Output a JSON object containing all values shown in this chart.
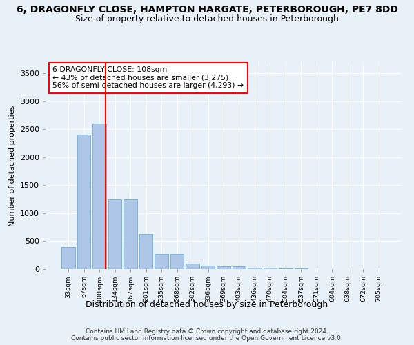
{
  "title_line1": "6, DRAGONFLY CLOSE, HAMPTON HARGATE, PETERBOROUGH, PE7 8DD",
  "title_line2": "Size of property relative to detached houses in Peterborough",
  "xlabel": "Distribution of detached houses by size in Peterborough",
  "ylabel": "Number of detached properties",
  "footnote": "Contains HM Land Registry data © Crown copyright and database right 2024.\nContains public sector information licensed under the Open Government Licence v3.0.",
  "categories": [
    "33sqm",
    "67sqm",
    "100sqm",
    "134sqm",
    "167sqm",
    "201sqm",
    "235sqm",
    "268sqm",
    "302sqm",
    "336sqm",
    "369sqm",
    "403sqm",
    "436sqm",
    "470sqm",
    "504sqm",
    "537sqm",
    "571sqm",
    "604sqm",
    "638sqm",
    "672sqm",
    "705sqm"
  ],
  "values": [
    400,
    2400,
    2600,
    1250,
    1250,
    630,
    270,
    270,
    95,
    65,
    55,
    45,
    30,
    20,
    12,
    8,
    5,
    4,
    3,
    2,
    2
  ],
  "bar_color": "#aec6e8",
  "bar_edge_color": "#6baed6",
  "red_line_index": 2.42,
  "annotation_text": "6 DRAGONFLY CLOSE: 108sqm\n← 43% of detached houses are smaller (3,275)\n56% of semi-detached houses are larger (4,293) →",
  "annotation_box_color": "white",
  "annotation_box_edge_color": "red",
  "red_line_color": "red",
  "ylim": [
    0,
    3700
  ],
  "yticks": [
    0,
    500,
    1000,
    1500,
    2000,
    2500,
    3000,
    3500
  ],
  "bg_color": "#e8f0f8",
  "plot_bg_color": "#e8f0f8",
  "grid_color": "white",
  "title_fontsize": 10,
  "subtitle_fontsize": 9,
  "footnote_fontsize": 6.5
}
